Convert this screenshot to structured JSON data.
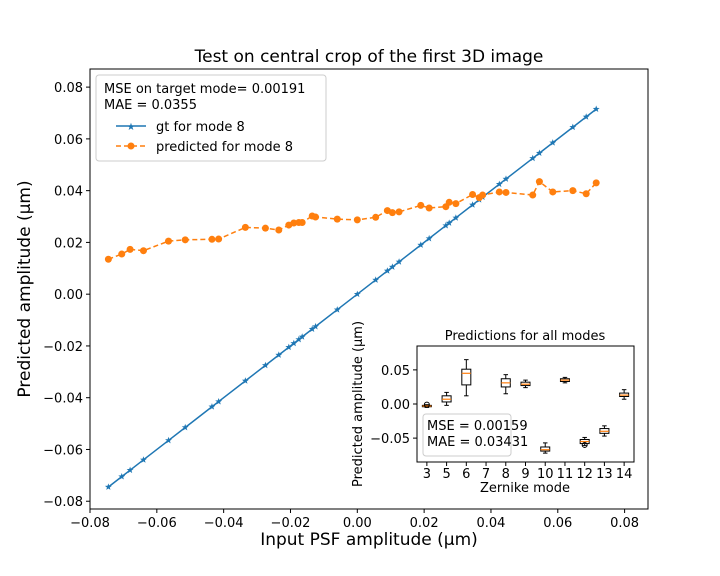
{
  "chart_data": [
    {
      "type": "line",
      "title": "Test on central crop of the first 3D image",
      "xlabel": "Input PSF amplitude (μm)",
      "ylabel": "Predicted amplitude (μm)",
      "xlim": [
        -0.08,
        0.087
      ],
      "ylim": [
        -0.083,
        0.087
      ],
      "xticks": [
        "−0.08",
        "−0.06",
        "−0.04",
        "−0.02",
        "0.00",
        "0.02",
        "0.04",
        "0.06",
        "0.08"
      ],
      "yticks": [
        "−0.08",
        "−0.06",
        "−0.04",
        "−0.02",
        "0.00",
        "0.02",
        "0.04",
        "0.06",
        "0.08"
      ],
      "legend_lines": [
        "MSE on target mode= 0.00191",
        "MAE = 0.0355"
      ],
      "legend_position": "top-left",
      "series": [
        {
          "name": "gt for mode 8",
          "color": "#1f77b4",
          "marker": "star",
          "linestyle": "solid",
          "x": [
            -0.0745,
            -0.0705,
            -0.068,
            -0.064,
            -0.0565,
            -0.0515,
            -0.0435,
            -0.0415,
            -0.0335,
            -0.0275,
            -0.0235,
            -0.0205,
            -0.019,
            -0.0175,
            -0.0165,
            -0.0135,
            -0.0125,
            -0.006,
            0.0,
            0.0055,
            0.009,
            0.0105,
            0.0125,
            0.019,
            0.0215,
            0.0265,
            0.0275,
            0.0295,
            0.0345,
            0.0365,
            0.0375,
            0.0425,
            0.0445,
            0.0525,
            0.0545,
            0.0585,
            0.0645,
            0.0685,
            0.0715
          ],
          "y": [
            -0.0745,
            -0.0705,
            -0.068,
            -0.064,
            -0.0565,
            -0.0515,
            -0.0435,
            -0.0415,
            -0.0335,
            -0.0275,
            -0.0235,
            -0.0205,
            -0.019,
            -0.0175,
            -0.0165,
            -0.0135,
            -0.0125,
            -0.006,
            0.0,
            0.0055,
            0.009,
            0.0105,
            0.0125,
            0.019,
            0.0215,
            0.0265,
            0.0275,
            0.0295,
            0.0345,
            0.0365,
            0.0375,
            0.0425,
            0.0445,
            0.0525,
            0.0545,
            0.0585,
            0.0645,
            0.0685,
            0.0715
          ]
        },
        {
          "name": "predicted for mode 8",
          "color": "#ff7f0e",
          "marker": "circle",
          "linestyle": "dashed",
          "x": [
            -0.0745,
            -0.0705,
            -0.068,
            -0.064,
            -0.0565,
            -0.0515,
            -0.0435,
            -0.0415,
            -0.0335,
            -0.0275,
            -0.0235,
            -0.0205,
            -0.019,
            -0.0175,
            -0.0165,
            -0.0135,
            -0.0125,
            -0.006,
            0.0,
            0.0055,
            0.009,
            0.0105,
            0.0125,
            0.019,
            0.0215,
            0.0265,
            0.0275,
            0.0295,
            0.0345,
            0.0365,
            0.0375,
            0.0425,
            0.0445,
            0.0525,
            0.0545,
            0.0585,
            0.0645,
            0.0685,
            0.0715
          ],
          "y": [
            0.0135,
            0.0155,
            0.0173,
            0.0168,
            0.0205,
            0.021,
            0.0212,
            0.0213,
            0.0258,
            0.0255,
            0.0248,
            0.0267,
            0.0275,
            0.0277,
            0.0277,
            0.0302,
            0.0298,
            0.029,
            0.0287,
            0.0297,
            0.0323,
            0.0315,
            0.0318,
            0.0343,
            0.0333,
            0.0338,
            0.0355,
            0.035,
            0.0385,
            0.0373,
            0.0383,
            0.0395,
            0.0393,
            0.0383,
            0.0435,
            0.0395,
            0.04,
            0.0388,
            0.043
          ]
        }
      ]
    },
    {
      "type": "box",
      "title": "Predictions for all modes",
      "xlabel": "Zernike mode",
      "ylabel": "Predicted amplitude (μm)",
      "categories": [
        "3",
        "5",
        "6",
        "7",
        "8",
        "9",
        "10",
        "11",
        "12",
        "13",
        "14"
      ],
      "yticks": [
        "0.05",
        "0.00",
        "−0.05"
      ],
      "ylim": [
        -0.085,
        0.085
      ],
      "annotation_lines": [
        "MSE = 0.00159",
        "MAE = 0.03431"
      ],
      "boxes": [
        {
          "mode": "3",
          "q1": -0.004,
          "median": -0.003,
          "q3": -0.002,
          "whisker_low": -0.005,
          "whisker_high": -0.001,
          "outliers": [
            -0.001
          ]
        },
        {
          "mode": "5",
          "q1": 0.003,
          "median": 0.007,
          "q3": 0.012,
          "whisker_low": -0.002,
          "whisker_high": 0.017,
          "outliers": []
        },
        {
          "mode": "6",
          "q1": 0.028,
          "median": 0.045,
          "q3": 0.051,
          "whisker_low": 0.012,
          "whisker_high": 0.065,
          "outliers": []
        },
        {
          "mode": "8",
          "q1": 0.025,
          "median": 0.031,
          "q3": 0.037,
          "whisker_low": 0.015,
          "whisker_high": 0.043,
          "outliers": []
        },
        {
          "mode": "9",
          "q1": 0.027,
          "median": 0.029,
          "q3": 0.032,
          "whisker_low": 0.024,
          "whisker_high": 0.035,
          "outliers": []
        },
        {
          "mode": "10",
          "q1": -0.069,
          "median": -0.067,
          "q3": -0.063,
          "whisker_low": -0.072,
          "whisker_high": -0.057,
          "outliers": []
        },
        {
          "mode": "11",
          "q1": 0.033,
          "median": 0.035,
          "q3": 0.037,
          "whisker_low": 0.031,
          "whisker_high": 0.039,
          "outliers": []
        },
        {
          "mode": "12",
          "q1": -0.058,
          "median": -0.055,
          "q3": -0.052,
          "whisker_low": -0.061,
          "whisker_high": -0.049,
          "outliers": [
            -0.06
          ]
        },
        {
          "mode": "13",
          "q1": -0.043,
          "median": -0.04,
          "q3": -0.036,
          "whisker_low": -0.047,
          "whisker_high": -0.032,
          "outliers": []
        },
        {
          "mode": "14",
          "q1": 0.011,
          "median": 0.013,
          "q3": 0.016,
          "whisker_low": 0.007,
          "whisker_high": 0.021,
          "outliers": []
        }
      ]
    }
  ]
}
